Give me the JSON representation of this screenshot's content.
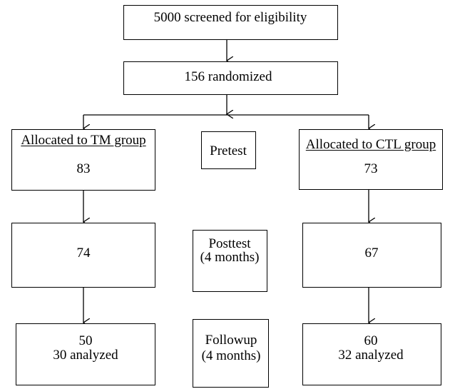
{
  "screened": "5000 screened for eligibility",
  "randomized": "156 randomized",
  "tm_group": {
    "label": "Allocated to TM group",
    "pretest": "83",
    "posttest": "74",
    "followup_n": "50",
    "followup_analyzed": "30 analyzed"
  },
  "ctl_group": {
    "label": "Allocated to CTL group",
    "pretest": "73",
    "posttest": "67",
    "followup_n": "60",
    "followup_analyzed": "32 analyzed"
  },
  "phases": {
    "pretest": "Pretest",
    "posttest_line1": "Posttest",
    "posttest_line2": "(4 months)",
    "followup_line1": "Followup",
    "followup_line2": "(4 months)"
  }
}
